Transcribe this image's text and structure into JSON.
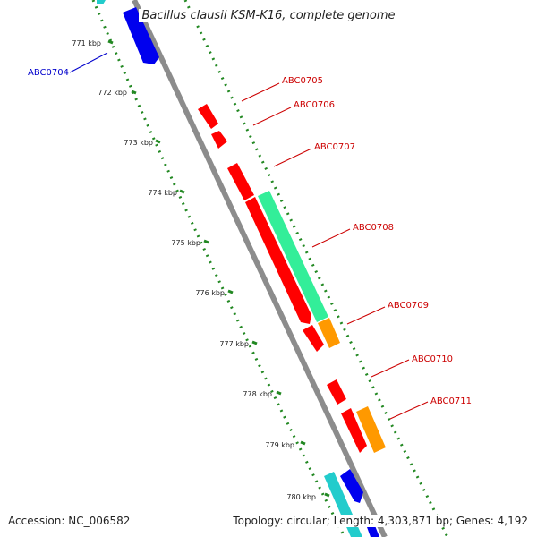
{
  "header": {
    "title": "Bacillus clausii KSM-K16, complete genome"
  },
  "footer": {
    "accession": "Accession: NC_006582",
    "summary": "Topology: circular; Length: 4,303,871 bp; Genes: 4,192"
  },
  "ticks": [
    "771 kbp",
    "772 kbp",
    "773 kbp",
    "774 kbp",
    "775 kbp",
    "776 kbp",
    "777 kbp",
    "778 kbp",
    "779 kbp",
    "780 kbp"
  ],
  "gene_labels": [
    {
      "text": "ABC0704",
      "color": "#0000cc"
    },
    {
      "text": "ABC0705",
      "color": "#cc0000"
    },
    {
      "text": "ABC0706",
      "color": "#cc0000"
    },
    {
      "text": "ABC0707",
      "color": "#cc0000"
    },
    {
      "text": "ABC0708",
      "color": "#cc0000"
    },
    {
      "text": "ABC0709",
      "color": "#cc0000"
    },
    {
      "text": "ABC0710",
      "color": "#cc0000"
    },
    {
      "text": "ABC0711",
      "color": "#cc0000"
    }
  ],
  "colors": {
    "backbone": "#8c8c8c",
    "forward_cds": "#ff0000",
    "reverse_cds": "#0000ee",
    "cyan_feature": "#22cccc",
    "green_feature": "#33ee99",
    "orange_feature": "#ff9900",
    "dotted_track": "#228822",
    "reverse_label": "#0000cc",
    "forward_label": "#cc0000"
  }
}
